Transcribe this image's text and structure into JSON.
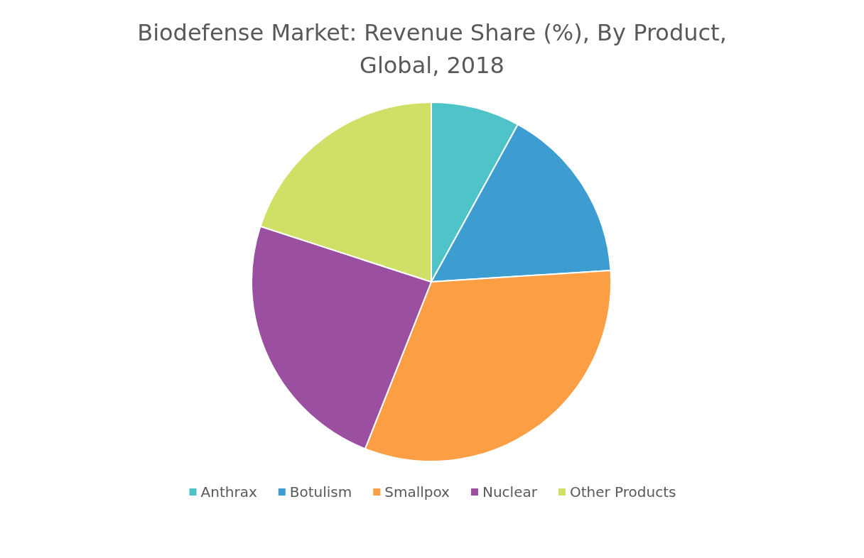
{
  "chart_data": {
    "type": "pie",
    "title": "Biodefense Market: Revenue Share (%), By Product,\nGlobal, 2018",
    "categories": [
      "Anthrax",
      "Botulism",
      "Smallpox",
      "Nuclear",
      "Other Products"
    ],
    "values": [
      8,
      16,
      32,
      24,
      20
    ],
    "colors": [
      "#4fc4c8",
      "#3d9cd0",
      "#fb9e44",
      "#9a4fa0",
      "#d0df66"
    ],
    "legend": "bottom"
  }
}
